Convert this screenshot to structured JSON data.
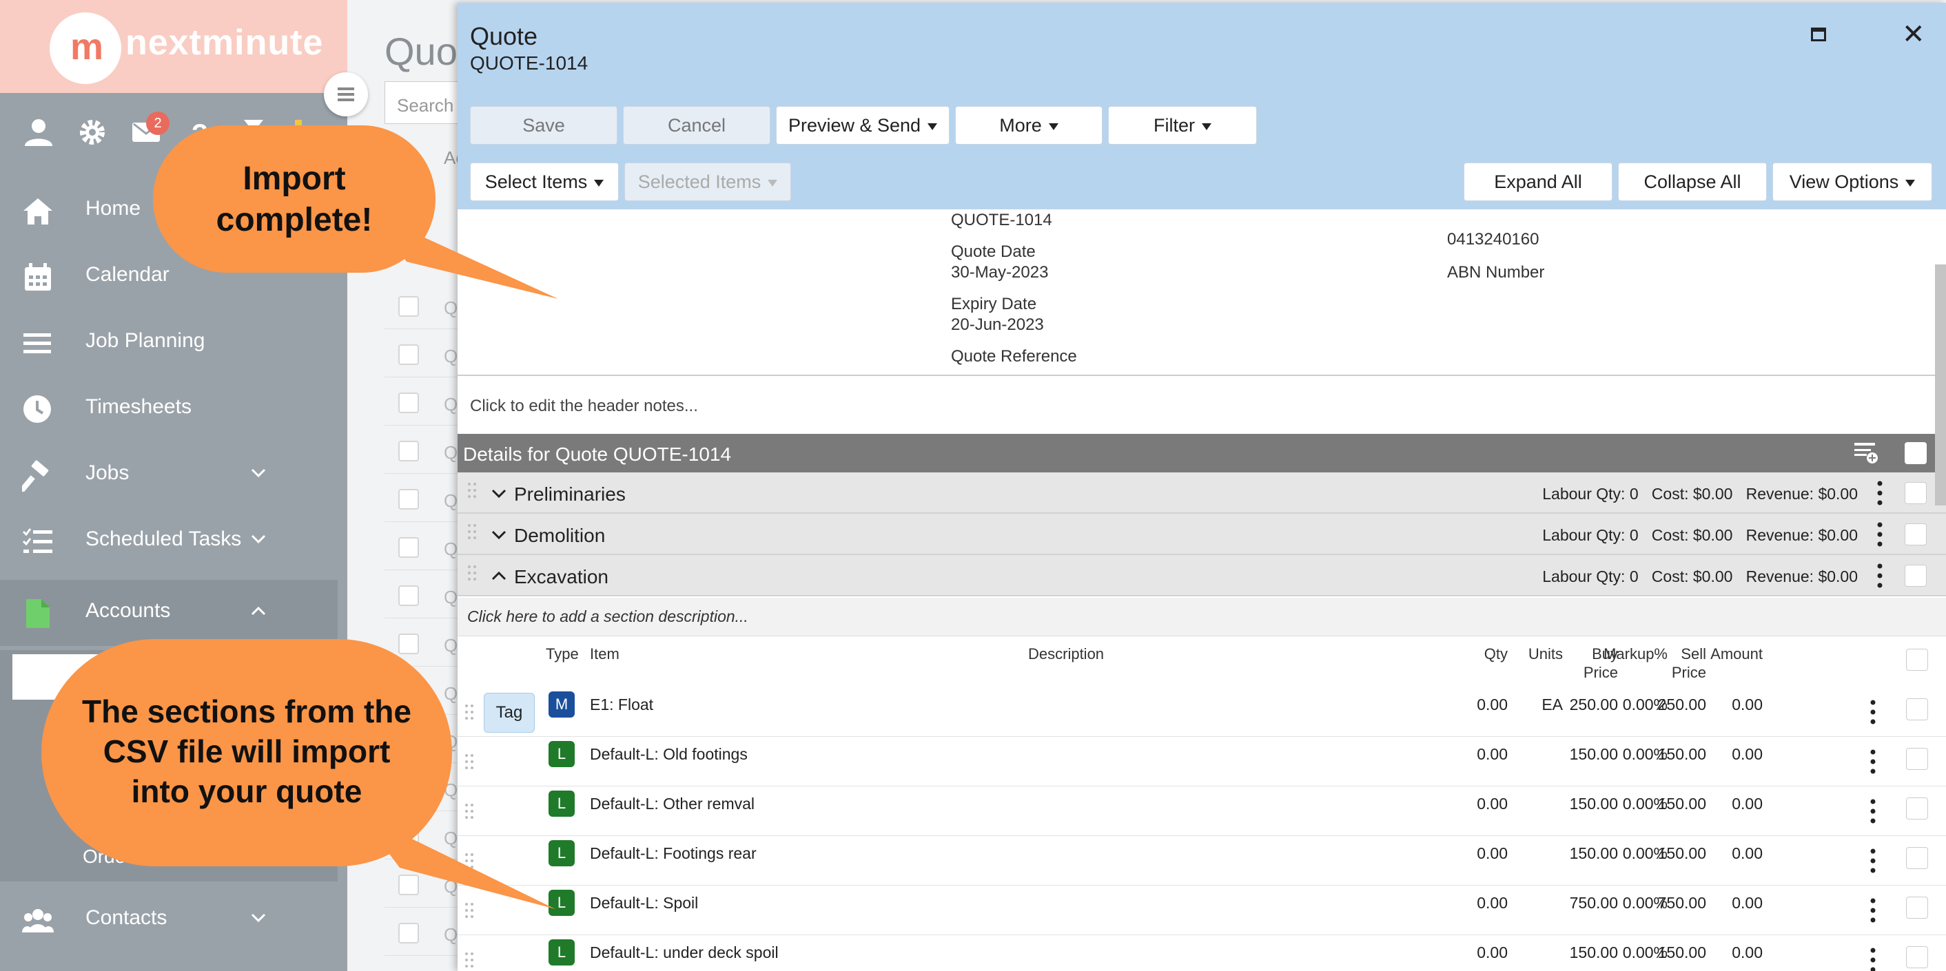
{
  "app": {
    "brand": "nextminute",
    "logo_mark": "m",
    "colors": {
      "brand_salmon": "#f9cdc3",
      "sidebar": "#9aa2a9",
      "modal_header": "#b7d4ef",
      "callout": "#fb9547",
      "type_material": "#1b4f9c",
      "type_labour": "#1f7a2a"
    }
  },
  "sidebar": {
    "top_icons": [
      "user-icon",
      "gear-icon",
      "mail-icon",
      "help-icon",
      "hourglass-icon",
      "folder-icon"
    ],
    "mail_badge": "2",
    "items": [
      {
        "label": "Home",
        "icon": "home-icon"
      },
      {
        "label": "Calendar",
        "icon": "calendar-icon"
      },
      {
        "label": "Job Planning",
        "icon": "bars-icon"
      },
      {
        "label": "Timesheets",
        "icon": "clock-icon"
      },
      {
        "label": "Jobs",
        "icon": "hammer-icon",
        "expandable": true
      },
      {
        "label": "Scheduled Tasks",
        "icon": "tasks-icon",
        "expandable": true
      },
      {
        "label": "Accounts",
        "icon": "document-icon",
        "expanded": true
      },
      {
        "label": "Contacts",
        "icon": "users-icon",
        "expandable": true
      }
    ],
    "accounts_sub_visible": "Orde"
  },
  "background_page": {
    "title": "Quot",
    "search_placeholder": "Search",
    "col_fragment": "Ac",
    "row_fragments": [
      "Qu",
      "QU",
      "QU",
      "QU",
      "QU",
      "QU",
      "QU",
      "QU",
      "QU",
      "QU",
      "QU",
      "QU",
      "QU",
      "QU"
    ]
  },
  "modal": {
    "title": "Quote",
    "subtitle": "QUOTE-1014",
    "toolbar": {
      "save": "Save",
      "cancel": "Cancel",
      "preview_send": "Preview & Send",
      "more": "More",
      "filter": "Filter",
      "select_items": "Select Items",
      "selected_items": "Selected Items",
      "expand_all": "Expand All",
      "collapse_all": "Collapse All",
      "view_options": "View Options"
    },
    "info": {
      "quote_number": "QUOTE-1014",
      "quote_date_label": "Quote Date",
      "quote_date": "30-May-2023",
      "expiry_date_label": "Expiry Date",
      "expiry_date": "20-Jun-2023",
      "quote_reference_label": "Quote Reference",
      "phone": "0413240160",
      "abn_label": "ABN Number"
    },
    "header_notes": "Click to edit the header notes...",
    "details_title": "Details for Quote QUOTE-1014",
    "sections": [
      {
        "name": "Preliminaries",
        "stats": "Labour Qty: 0   Cost: $0.00   Revenue: $0.00",
        "expanded": false
      },
      {
        "name": "Demolition",
        "stats": "Labour Qty: 0   Cost: $0.00   Revenue: $0.00",
        "expanded": false
      },
      {
        "name": "Excavation",
        "stats": "Labour Qty: 0   Cost: $0.00   Revenue: $0.00",
        "expanded": true
      }
    ],
    "section_description": "Click here to add a section description...",
    "columns": {
      "type": "Type",
      "item": "Item",
      "description": "Description",
      "qty": "Qty",
      "units": "Units",
      "buy_price_1": "Buy",
      "buy_price_2": "Price",
      "markup": "Markup%",
      "sell_price_1": "Sell",
      "sell_price_2": "Price",
      "amount": "Amount"
    },
    "tag_label": "Tag",
    "rows": [
      {
        "type": "M",
        "item": "E1: Float",
        "qty": "0.00",
        "units": "EA",
        "buy": "250.00",
        "markup": "0.00%",
        "sell": "250.00",
        "amount": "0.00",
        "has_tag": true
      },
      {
        "type": "L",
        "item": "Default-L: Old footings",
        "qty": "0.00",
        "units": "",
        "buy": "150.00",
        "markup": "0.00%",
        "sell": "150.00",
        "amount": "0.00"
      },
      {
        "type": "L",
        "item": "Default-L: Other remval",
        "qty": "0.00",
        "units": "",
        "buy": "150.00",
        "markup": "0.00%",
        "sell": "150.00",
        "amount": "0.00"
      },
      {
        "type": "L",
        "item": "Default-L: Footings rear",
        "qty": "0.00",
        "units": "",
        "buy": "150.00",
        "markup": "0.00%",
        "sell": "150.00",
        "amount": "0.00"
      },
      {
        "type": "L",
        "item": "Default-L: Spoil",
        "qty": "0.00",
        "units": "",
        "buy": "750.00",
        "markup": "0.00%",
        "sell": "750.00",
        "amount": "0.00"
      },
      {
        "type": "L",
        "item": "Default-L: under deck spoil",
        "qty": "0.00",
        "units": "",
        "buy": "150.00",
        "markup": "0.00%",
        "sell": "150.00",
        "amount": "0.00"
      }
    ]
  },
  "callouts": {
    "import_complete": [
      "Import",
      "complete!"
    ],
    "sections_note": [
      "The sections from the",
      "CSV file will import",
      "into your quote"
    ]
  }
}
